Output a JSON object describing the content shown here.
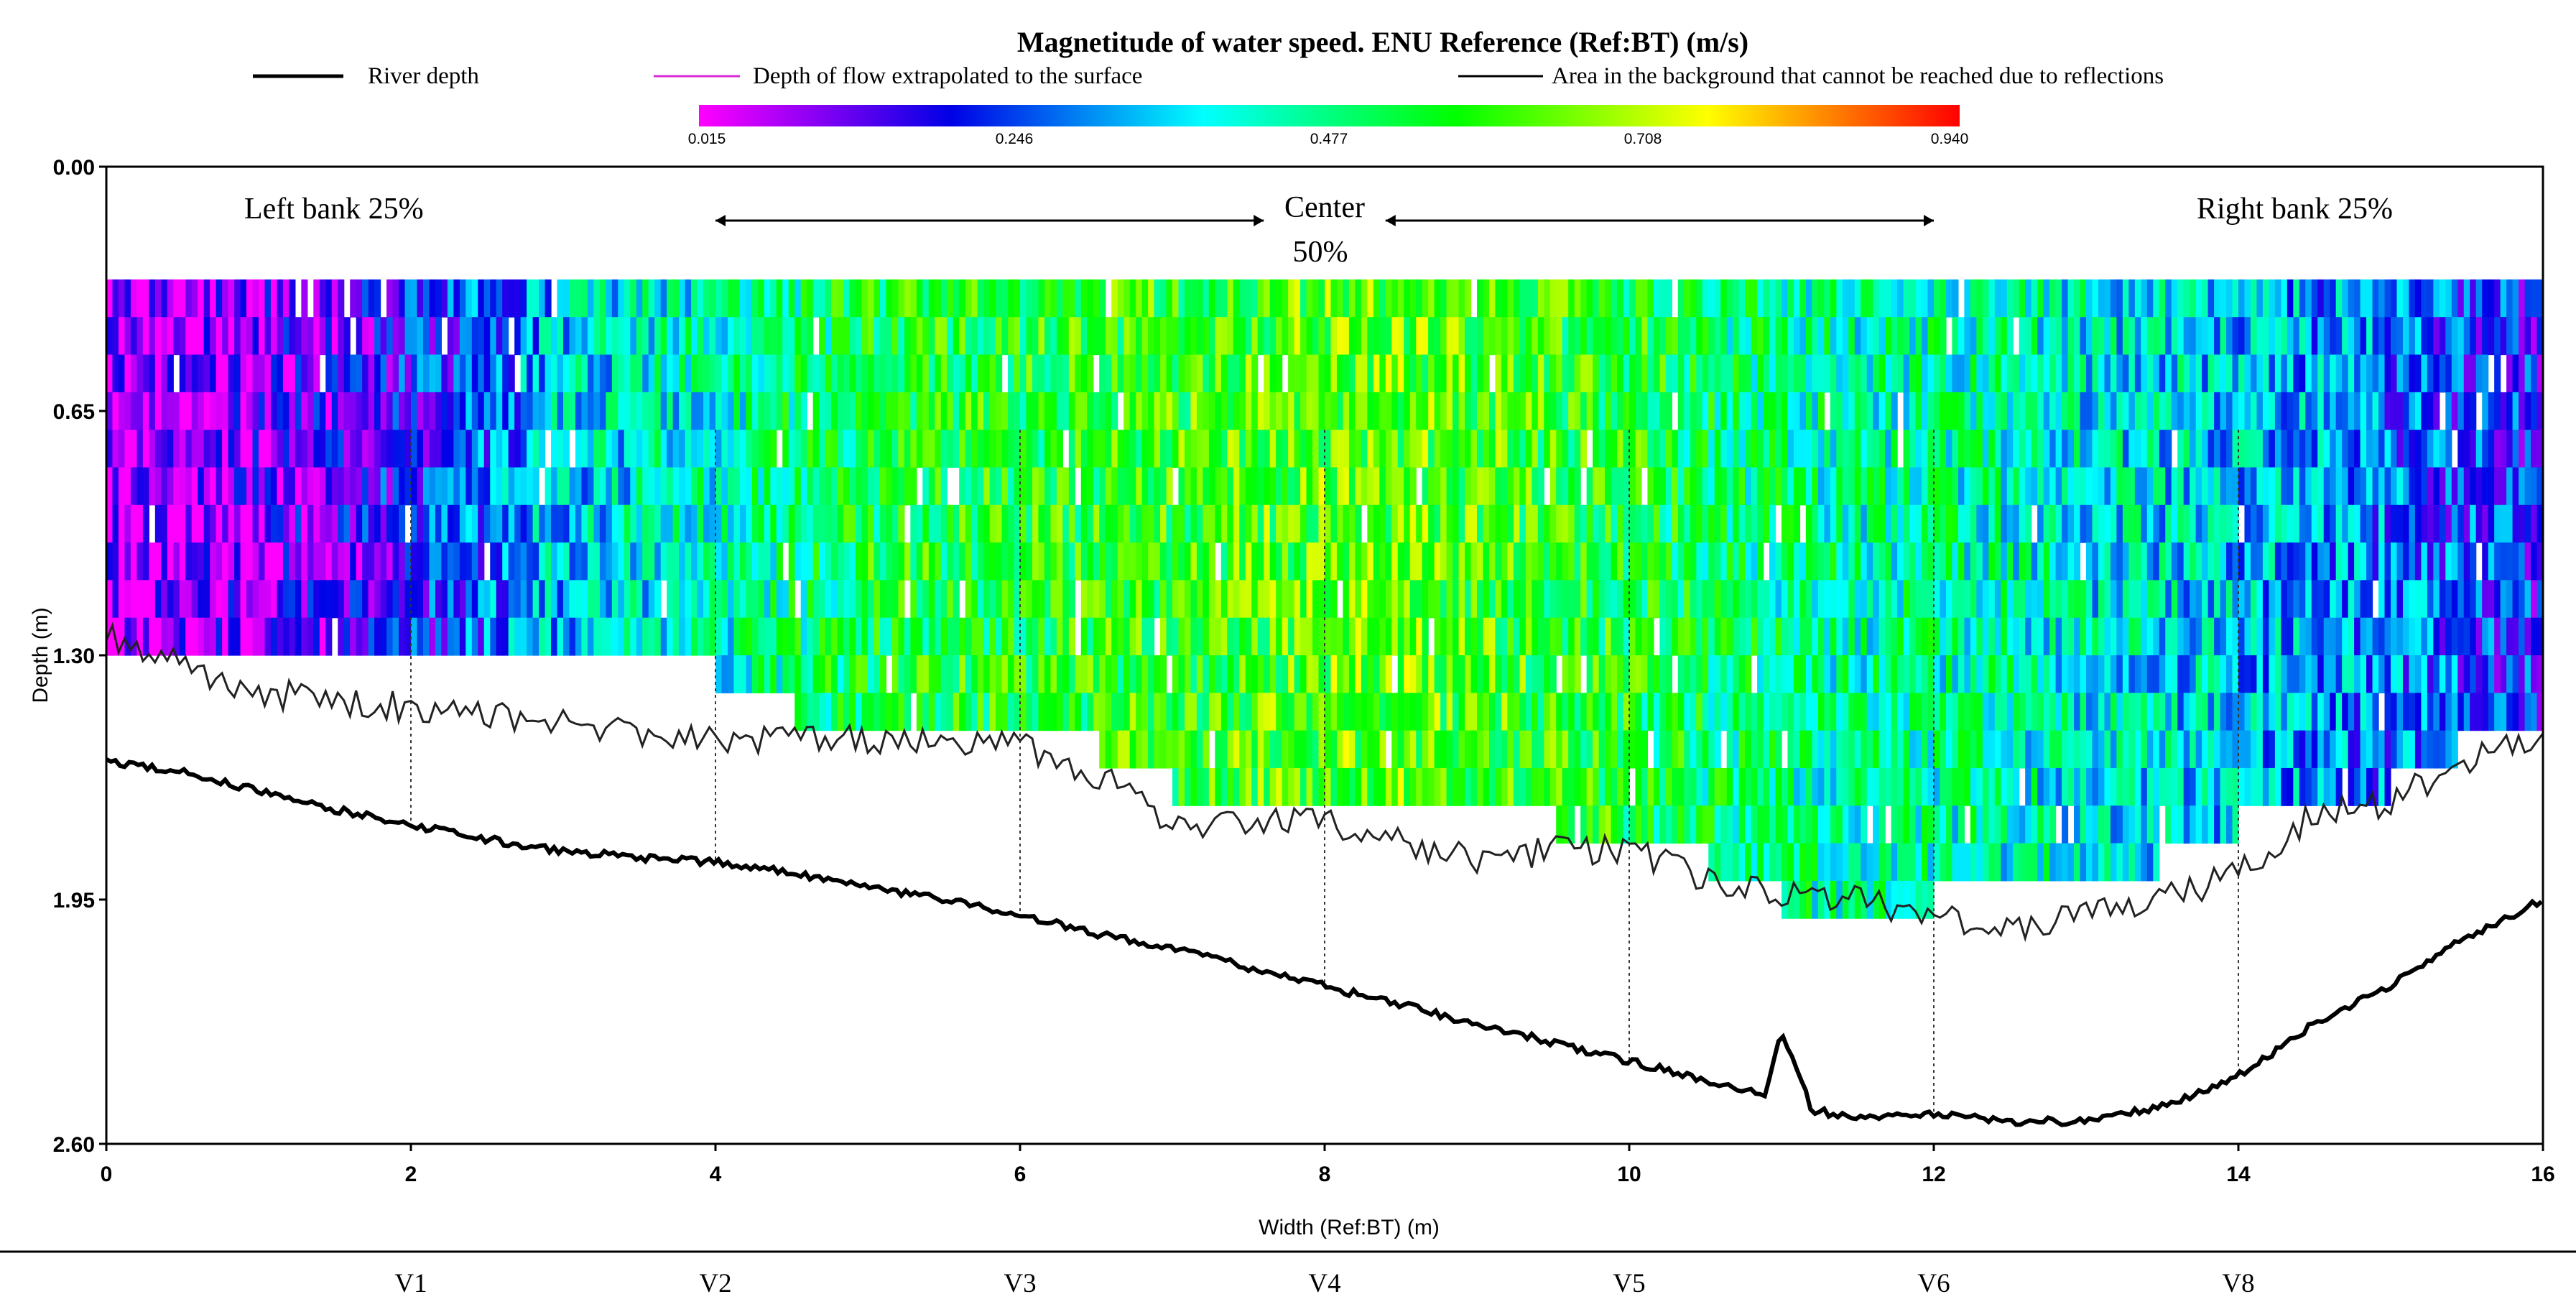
{
  "chart_data": {
    "type": "heatmap",
    "title": "Magnetitude  of water speed.  ENU Reference (Ref:BT) (m/s)",
    "xlabel": "Width (Ref:BT) (m)",
    "ylabel": "Depth (m)",
    "xlim": [
      0,
      16
    ],
    "ylim": [
      0,
      2.6
    ],
    "y_inverted": true,
    "x_ticks": [
      "0",
      "2",
      "4",
      "6",
      "8",
      "10",
      "12",
      "14",
      "16"
    ],
    "y_ticks": [
      "0.00",
      "0.65",
      "1.30",
      "1.95",
      "2.60"
    ],
    "colorbar": {
      "ticks": [
        "0.015",
        "0.246",
        "0.477",
        "0.708",
        "0.940"
      ],
      "range": [
        0.015,
        0.94
      ],
      "colors": [
        "#ff00ff",
        "#0000e6",
        "#00ffff",
        "#00ff00",
        "#ffff00",
        "#ff0000"
      ]
    },
    "legend": [
      {
        "label": "River depth",
        "color": "#000000",
        "style": "thick"
      },
      {
        "label": "Depth of flow extrapolated to the surface",
        "color": "#d62bd6",
        "style": "thin"
      },
      {
        "label": "Area in the background that cannot be reached due to reflections",
        "color": "#000000",
        "style": "thin"
      }
    ],
    "river_depth": {
      "x": [
        0,
        0.5,
        1,
        1.5,
        2,
        2.5,
        3,
        3.5,
        4,
        4.5,
        5,
        5.5,
        6,
        6.5,
        7,
        7.5,
        8,
        8.5,
        9,
        9.5,
        10,
        10.5,
        10.9,
        11.0,
        11.2,
        11.5,
        12,
        12.5,
        13,
        13.5,
        14,
        14.5,
        15,
        15.5,
        16
      ],
      "y": [
        1.58,
        1.61,
        1.66,
        1.71,
        1.75,
        1.79,
        1.82,
        1.84,
        1.85,
        1.88,
        1.92,
        1.95,
        1.99,
        2.04,
        2.08,
        2.13,
        2.18,
        2.23,
        2.28,
        2.33,
        2.38,
        2.43,
        2.47,
        2.3,
        2.51,
        2.53,
        2.52,
        2.54,
        2.54,
        2.5,
        2.42,
        2.28,
        2.18,
        2.05,
        1.95
      ]
    },
    "unreachable_area": {
      "x": [
        0,
        0.5,
        1,
        2,
        3,
        4,
        5,
        6,
        6.5,
        7,
        7.5,
        8,
        8.5,
        9,
        9.5,
        10,
        10.5,
        11,
        11.5,
        12,
        12.5,
        13,
        13.5,
        14,
        14.5,
        15,
        15.5,
        16
      ],
      "y": [
        1.25,
        1.33,
        1.4,
        1.44,
        1.48,
        1.53,
        1.52,
        1.54,
        1.62,
        1.74,
        1.75,
        1.74,
        1.8,
        1.84,
        1.82,
        1.82,
        1.89,
        1.94,
        1.95,
        2.0,
        2.03,
        1.98,
        1.95,
        1.88,
        1.72,
        1.69,
        1.58,
        1.52
      ]
    },
    "flow_bottom": {
      "x": [
        0,
        0.5,
        1,
        1.5,
        2,
        2.5,
        3,
        3.5,
        4,
        4.5,
        5,
        5.5,
        6,
        6.5,
        7,
        7.5,
        8,
        8.5,
        9,
        9.5,
        10,
        10.5,
        11,
        11.5,
        12,
        12.5,
        13,
        13.5,
        14,
        14.5,
        15,
        15.5,
        16
      ],
      "y": [
        1.3,
        1.3,
        1.3,
        1.3,
        1.3,
        1.3,
        1.3,
        1.3,
        1.3,
        1.4,
        1.5,
        1.5,
        1.5,
        1.5,
        1.6,
        1.7,
        1.6,
        1.7,
        1.7,
        1.7,
        1.8,
        1.8,
        1.9,
        1.95,
        1.9,
        1.9,
        1.9,
        1.8,
        1.7,
        1.7,
        1.6,
        1.5,
        1.5
      ]
    },
    "speed_profile": {
      "x": [
        0,
        0.5,
        1,
        1.5,
        2,
        2.5,
        3,
        3.5,
        4,
        4.5,
        5,
        5.5,
        6,
        6.5,
        7,
        7.5,
        8,
        8.5,
        9,
        9.5,
        10,
        10.5,
        11,
        11.5,
        12,
        12.5,
        13,
        13.5,
        14,
        14.5,
        15,
        15.5,
        16
      ],
      "speed": [
        0.05,
        0.08,
        0.1,
        0.14,
        0.2,
        0.27,
        0.36,
        0.4,
        0.43,
        0.48,
        0.53,
        0.55,
        0.55,
        0.57,
        0.58,
        0.6,
        0.62,
        0.62,
        0.6,
        0.57,
        0.55,
        0.5,
        0.47,
        0.45,
        0.45,
        0.43,
        0.4,
        0.38,
        0.35,
        0.32,
        0.28,
        0.24,
        0.2
      ]
    },
    "verticals": {
      "x": [
        2,
        4,
        6,
        8,
        10,
        12,
        14
      ],
      "labels": [
        "V1",
        "V2",
        "V3",
        "V4",
        "V5",
        "V6",
        "V8"
      ]
    },
    "annotations": {
      "left_bank": "Left bank  25%",
      "center_line1": "Center",
      "center_line2": "50%",
      "right_bank": "Right bank  25%",
      "center_arrow_left": [
        4,
        7.6
      ],
      "center_arrow_right": [
        8.4,
        12
      ]
    }
  }
}
